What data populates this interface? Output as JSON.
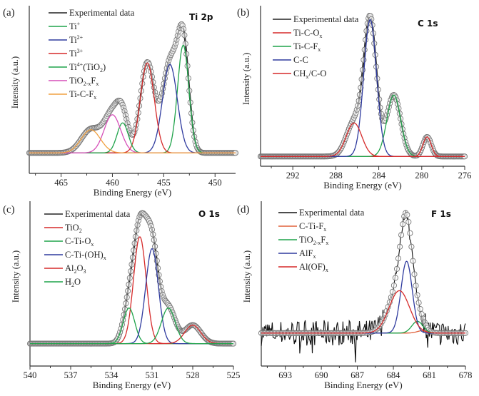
{
  "chart_data": [
    {
      "type": "line",
      "panel_label": "(a)",
      "title": "Ti 2p",
      "xlabel": "Binding Energy (eV)",
      "ylabel": "Intensity (a.u.)",
      "xlim": [
        468.1,
        448.0
      ],
      "x_reversed": true,
      "xticks": [
        465,
        460,
        455,
        450
      ],
      "minor_step": 2.5,
      "ylim": [
        -0.15,
        1.08
      ],
      "grid": false,
      "legend_position": "top-left",
      "experimental": {
        "name": "Experimental data",
        "color": "#222222",
        "marker": "open-circle"
      },
      "series": [
        {
          "name": "Ti+",
          "label_base": "Ti",
          "label_sup": "+",
          "color": "#1fa34a",
          "center": 453.1,
          "height": 0.79,
          "fwhm": 1.3
        },
        {
          "name": "Ti2+",
          "label_base": "Ti",
          "label_sup": "2+",
          "color": "#2e3a9e",
          "center": 454.4,
          "height": 0.65,
          "fwhm": 1.7
        },
        {
          "name": "Ti3+",
          "label_base": "Ti",
          "label_sup": "3+",
          "color": "#d62a2a",
          "center": 456.6,
          "height": 0.66,
          "fwhm": 1.6
        },
        {
          "name": "Ti4+(TiO2)",
          "label_base": "Ti",
          "label_sup": "4+",
          "label_tail": "(TiO",
          "label_sub2": "2",
          "label_end": ")",
          "color": "#1fa34a",
          "center": 459.0,
          "height": 0.22,
          "fwhm": 1.3
        },
        {
          "name": "TiO2-xFx",
          "label_base": "TiO",
          "label_sub": "2-x",
          "label_tail": "F",
          "label_sub2": "x",
          "color": "#d64fb8",
          "center": 460.0,
          "height": 0.28,
          "fwhm": 1.9
        },
        {
          "name": "Ti-C-Fx",
          "label_base": "Ti-C-F",
          "label_sub": "x",
          "color": "#f0a040",
          "center": 462.1,
          "height": 0.17,
          "fwhm": 2.2
        }
      ]
    },
    {
      "type": "line",
      "panel_label": "(b)",
      "title": "C 1s",
      "xlabel": "Binding Energy (eV)",
      "ylabel": "Intensity (a.u.)",
      "xlim": [
        295.0,
        276.0
      ],
      "x_reversed": true,
      "xticks": [
        292,
        288,
        284,
        280,
        276
      ],
      "minor_step": 2,
      "ylim": [
        -0.07,
        1.08
      ],
      "grid": false,
      "legend_position": "top-left",
      "experimental": {
        "name": "Experimental data",
        "color": "#222222",
        "marker": "open-circle"
      },
      "series": [
        {
          "name": "Ti-C-Ox",
          "label_base": "Ti-C-O",
          "label_sub": "x",
          "color": "#d62a2a",
          "center": 279.5,
          "height": 0.14,
          "fwhm": 0.9
        },
        {
          "name": "Ti-C-Fx",
          "label_base": "Ti-C-F",
          "label_sub": "x",
          "color": "#1fa34a",
          "center": 282.6,
          "height": 0.44,
          "fwhm": 1.5
        },
        {
          "name": "C-C",
          "label_base": "C-C",
          "color": "#2e3a9e",
          "center": 284.8,
          "height": 0.98,
          "fwhm": 1.4
        },
        {
          "name": "CHx/C-O",
          "label_base": "CH",
          "label_sub": "x",
          "label_tail": "/C-O",
          "color": "#d62a2a",
          "center": 286.3,
          "height": 0.24,
          "fwhm": 1.7
        }
      ]
    },
    {
      "type": "line",
      "panel_label": "(c)",
      "title": "O 1s",
      "xlabel": "Binding Energy (eV)",
      "ylabel": "Intensity (a.u.)",
      "xlim": [
        540.0,
        525.0
      ],
      "x_reversed": true,
      "xticks": [
        540,
        537,
        534,
        531,
        528,
        525
      ],
      "minor_step": 1.5,
      "ylim": [
        -0.17,
        1.08
      ],
      "grid": false,
      "legend_position": "top-left",
      "experimental": {
        "name": "Experimental data",
        "color": "#222222",
        "marker": "open-circle"
      },
      "series": [
        {
          "name": "TiO2",
          "label_base": "TiO",
          "label_sub": "2",
          "color": "#d62a2a",
          "center": 531.9,
          "height": 0.81,
          "fwhm": 1.1
        },
        {
          "name": "C-Ti-Ox",
          "label_base": "C-Ti-O",
          "label_sub": "x",
          "color": "#1fa34a",
          "center": 532.7,
          "height": 0.27,
          "fwhm": 1.0
        },
        {
          "name": "C-Ti-(OH)x",
          "label_base": "C-Ti-(OH)",
          "label_sub": "x",
          "color": "#2e3a9e",
          "center": 531.0,
          "height": 0.72,
          "fwhm": 1.1
        },
        {
          "name": "Al2O3",
          "label_base": "Al",
          "label_sub": "2",
          "label_tail": "O",
          "label_sub2": "3",
          "color": "#d62a2a",
          "center": 528.0,
          "height": 0.14,
          "fwhm": 1.4
        },
        {
          "name": "H2O",
          "label_base": "H",
          "label_sub": "2",
          "label_tail": "O",
          "color": "#1fa34a",
          "center": 529.8,
          "height": 0.27,
          "fwhm": 1.2
        }
      ]
    },
    {
      "type": "line",
      "panel_label": "(d)",
      "title": "F 1s",
      "xlabel": "Binding Energy (eV)",
      "ylabel": "Intensity (a.u.)",
      "xlim": [
        695.0,
        678.0
      ],
      "x_reversed": true,
      "xticks": [
        693,
        690,
        687,
        684,
        681,
        678
      ],
      "minor_step": 1.5,
      "ylim": [
        -0.28,
        1.12
      ],
      "grid": false,
      "legend_position": "top-left",
      "experimental": {
        "name": "Experimental data",
        "color": "#111111",
        "marker": "noisy-line+open-circle"
      },
      "series": [
        {
          "name": "C-Ti-Fx",
          "label_base": "C-Ti-F",
          "label_sub": "x",
          "color": "#e0603a",
          "center": 681.6,
          "height": 0.02,
          "fwhm": 1.0
        },
        {
          "name": "TiO2-xFx",
          "label_base": "TiO",
          "label_sub": "2-x",
          "label_tail": "F",
          "label_sub2": "x",
          "color": "#1fa34a",
          "center": 682.0,
          "height": 0.1,
          "fwhm": 1.1
        },
        {
          "name": "AlFx",
          "label_base": "AlF",
          "label_sub": "x",
          "color": "#2e3a9e",
          "center": 682.9,
          "height": 0.61,
          "fwhm": 1.1
        },
        {
          "name": "Al(OF)x",
          "label_base": "Al(OF)",
          "label_sub": "x",
          "color": "#d62a2a",
          "center": 683.5,
          "height": 0.36,
          "fwhm": 2.0
        }
      ]
    }
  ]
}
